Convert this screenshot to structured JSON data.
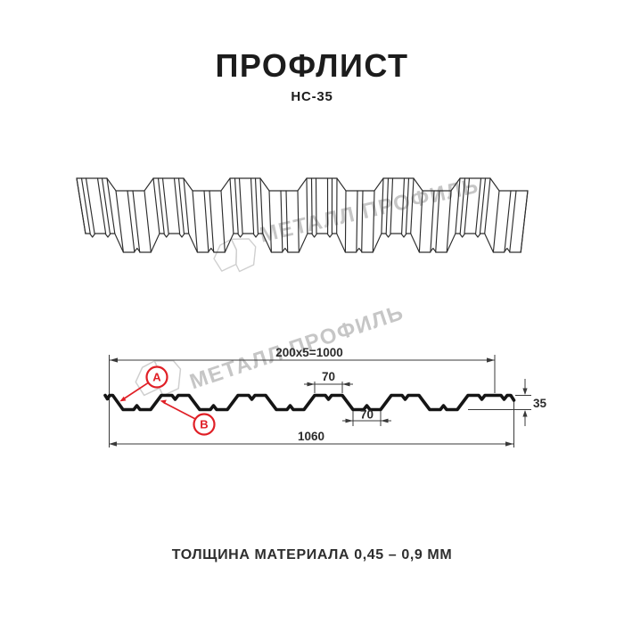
{
  "page": {
    "title": "ПРОФЛИСТ",
    "subtitle": "НС-35",
    "footer": "ТОЛЩИНА МАТЕРИАЛА 0,45 – 0,9 ММ"
  },
  "watermark": {
    "brand": "МЕТАЛЛ ПРОФИЛЬ"
  },
  "dimensions": {
    "top_width": "200x5=1000",
    "crest_width": "70",
    "valley_width": "70",
    "height": "35",
    "total_width": "1060"
  },
  "labels": {
    "point_a": "А",
    "point_b": "В"
  },
  "colors": {
    "accent_red": "#e01f26",
    "line_dark": "#1c1c1c",
    "watermark_gray": "#c6c6c6"
  }
}
